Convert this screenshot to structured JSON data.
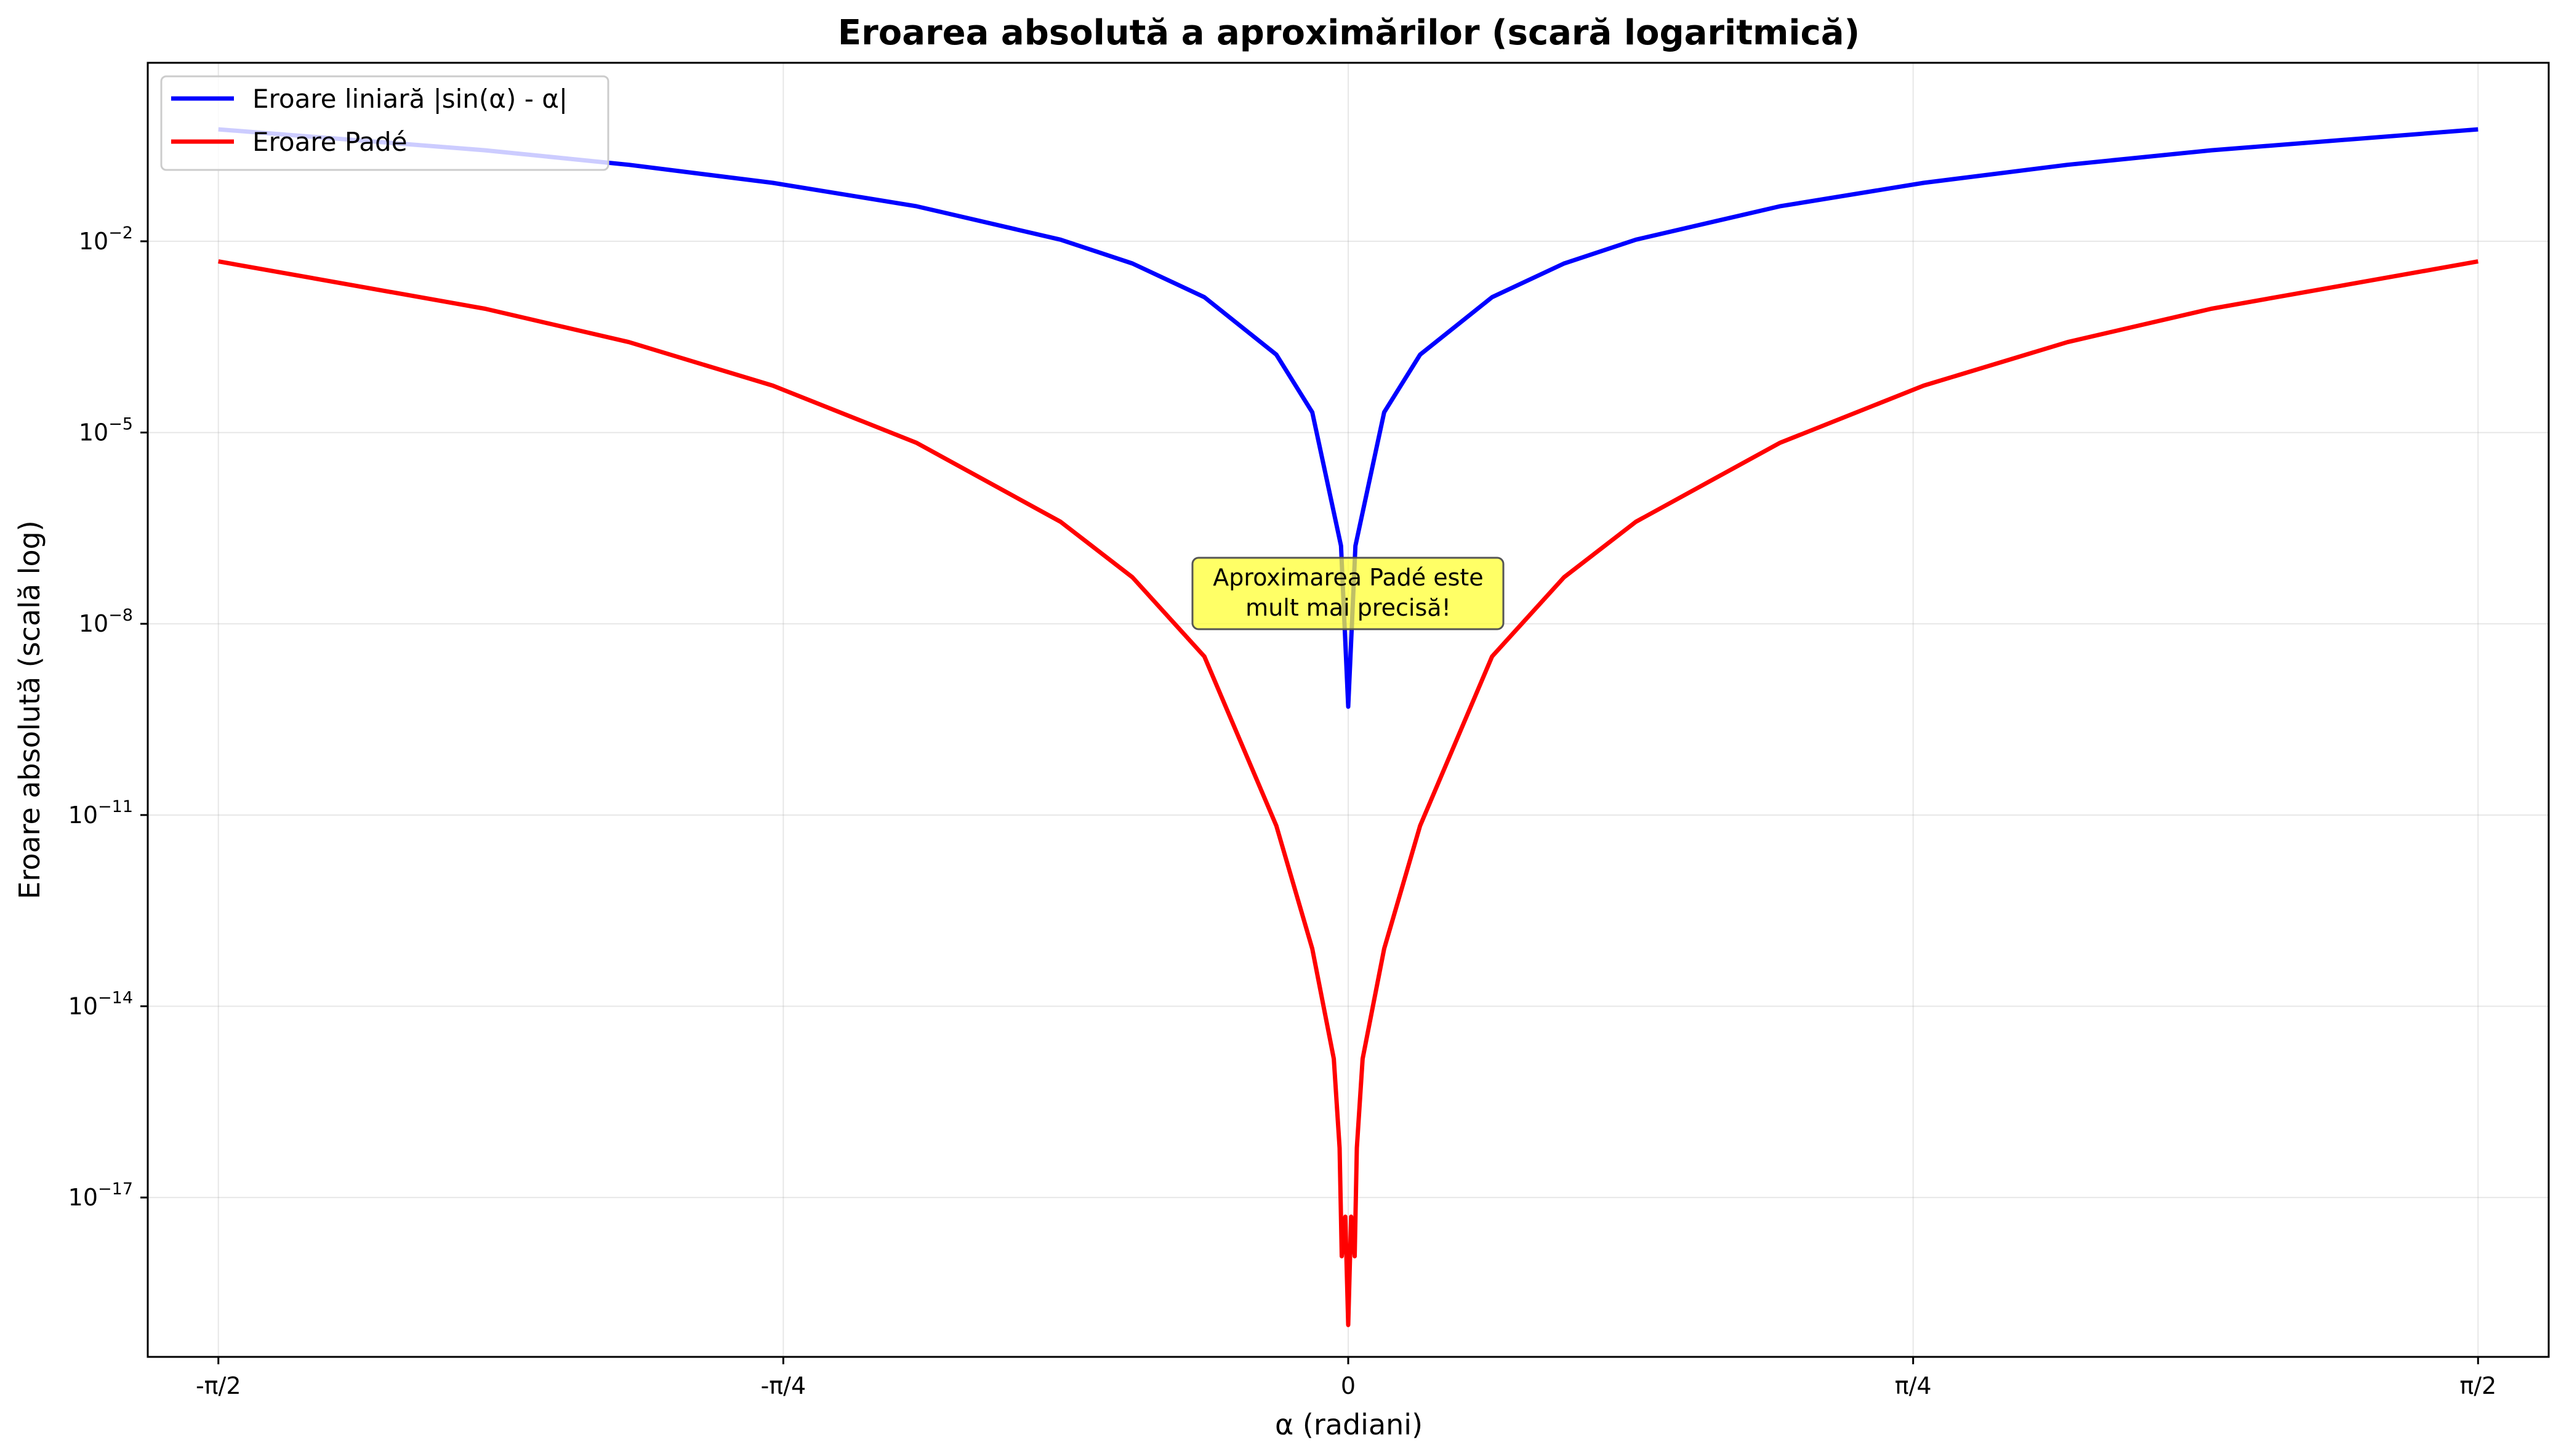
{
  "chart_data": {
    "type": "line",
    "title": "Eroarea absolută a aproximărilor (scară logaritmică)",
    "xlabel": "α (radiani)",
    "ylabel": "Eroare absolută (scală log)",
    "xlim": [
      -1.669,
      1.669
    ],
    "ylim_log10": [
      -19.5,
      0.8
    ],
    "yscale": "log",
    "grid": true,
    "legend_position": "top-left",
    "x_ticks": [
      {
        "value": -1.5708,
        "label": "-π/2"
      },
      {
        "value": -0.7854,
        "label": "-π/4"
      },
      {
        "value": 0,
        "label": "0"
      },
      {
        "value": 0.7854,
        "label": "π/4"
      },
      {
        "value": 1.5708,
        "label": "π/2"
      }
    ],
    "y_ticks": [
      {
        "log10": -2,
        "base": "10",
        "exp": "−2"
      },
      {
        "log10": -5,
        "base": "10",
        "exp": "−5"
      },
      {
        "log10": -8,
        "base": "10",
        "exp": "−8"
      },
      {
        "log10": -11,
        "base": "10",
        "exp": "−11"
      },
      {
        "log10": -14,
        "base": "10",
        "exp": "−14"
      },
      {
        "log10": -17,
        "base": "10",
        "exp": "−17"
      }
    ],
    "series": [
      {
        "name": "Eroare liniară |sin(α) - α|",
        "color": "#0000ff",
        "x": [
          -1.5708,
          -1.2,
          -1.0,
          -0.8,
          -0.6,
          -0.4,
          -0.3,
          -0.2,
          -0.1,
          -0.05,
          -0.01,
          0,
          0.01,
          0.05,
          0.1,
          0.2,
          0.3,
          0.4,
          0.6,
          0.8,
          1.0,
          1.2,
          1.5708
        ],
        "y": [
          0.5708,
          0.268,
          0.1585,
          0.0826,
          0.0354,
          0.0106,
          0.00448,
          0.00133,
          0.000167,
          2.08e-05,
          1.67e-07,
          5e-10,
          1.67e-07,
          2.08e-05,
          0.000167,
          0.00133,
          0.00448,
          0.0106,
          0.0354,
          0.0826,
          0.1585,
          0.268,
          0.5708
        ]
      },
      {
        "name": "Eroare Padé",
        "color": "#ff0000",
        "x": [
          -1.5708,
          -1.2,
          -1.0,
          -0.8,
          -0.6,
          -0.4,
          -0.3,
          -0.2,
          -0.1,
          -0.05,
          -0.02,
          -0.012,
          -0.009,
          -0.004,
          0,
          0.004,
          0.009,
          0.012,
          0.02,
          0.05,
          0.1,
          0.2,
          0.3,
          0.4,
          0.6,
          0.8,
          1.0,
          1.2,
          1.5708
        ],
        "y": [
          0.00484,
          0.000875,
          0.000262,
          5.44e-05,
          6.88e-06,
          3.98e-07,
          5.36e-08,
          3.07e-09,
          6.8e-12,
          8e-14,
          1.5e-15,
          6e-17,
          1.2e-18,
          5e-18,
          1e-19,
          5e-18,
          1.2e-18,
          6e-17,
          1.5e-15,
          8e-14,
          6.8e-12,
          3.07e-09,
          5.36e-08,
          3.98e-07,
          6.88e-06,
          5.44e-05,
          0.000262,
          0.000875,
          0.00484
        ]
      }
    ],
    "annotation": {
      "lines": [
        "Aproximarea Padé este",
        "mult mai precisă!"
      ],
      "x": 0,
      "y": 1e-08,
      "box_color": "#ffff33",
      "edge_color": "#555555"
    }
  }
}
